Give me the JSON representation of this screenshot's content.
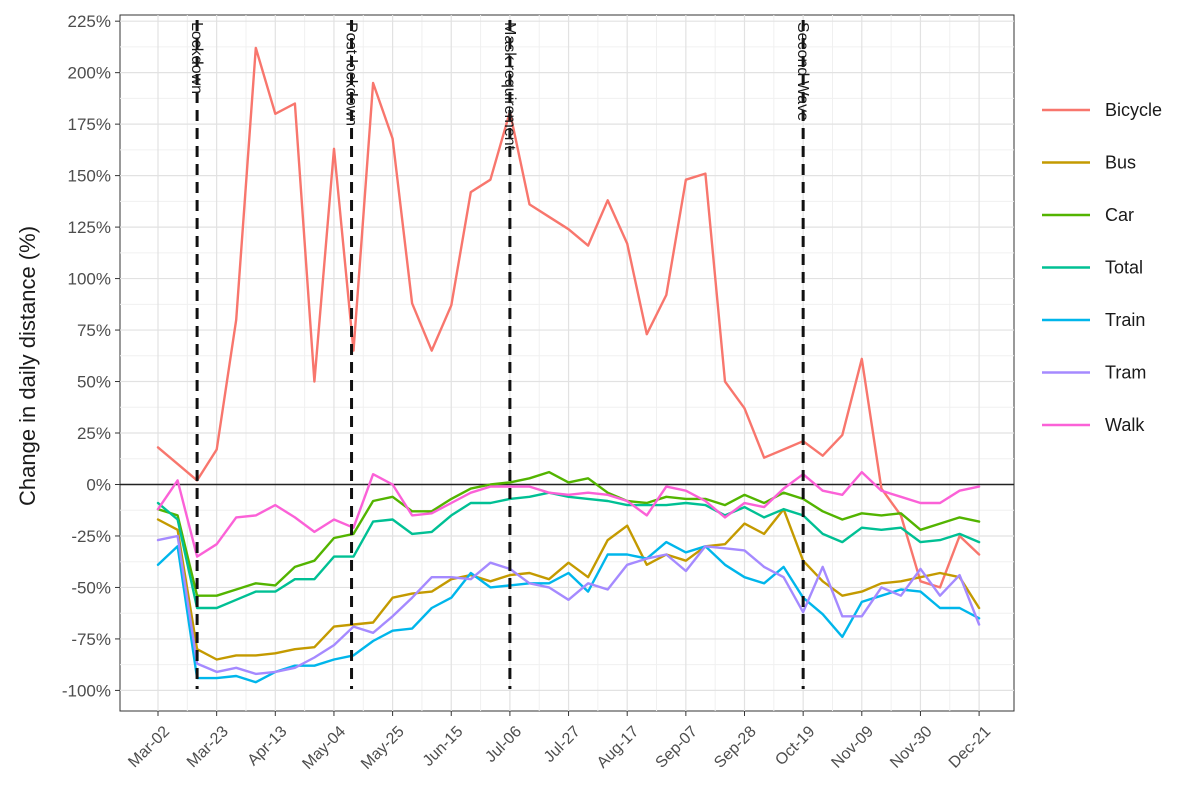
{
  "chart_data": {
    "type": "line",
    "title": "",
    "xlabel": "",
    "ylabel": "Change in daily distance (%)",
    "ylim": [
      -110,
      228
    ],
    "yticks": [
      -100,
      -75,
      -50,
      -25,
      0,
      25,
      50,
      75,
      100,
      125,
      150,
      175,
      200,
      225
    ],
    "ytick_labels": [
      "-100%",
      "-75%",
      "-50%",
      "-25%",
      "0%",
      "25%",
      "50%",
      "75%",
      "100%",
      "125%",
      "150%",
      "175%",
      "200%",
      "225%"
    ],
    "x": [
      "Mar-02",
      "Mar-09",
      "Mar-16",
      "Mar-23",
      "Mar-30",
      "Apr-06",
      "Apr-13",
      "Apr-20",
      "Apr-27",
      "May-04",
      "May-11",
      "May-18",
      "May-25",
      "Jun-01",
      "Jun-08",
      "Jun-15",
      "Jun-22",
      "Jun-29",
      "Jul-06",
      "Jul-13",
      "Jul-20",
      "Jul-27",
      "Aug-03",
      "Aug-10",
      "Aug-17",
      "Aug-24",
      "Aug-31",
      "Sep-07",
      "Sep-14",
      "Sep-21",
      "Sep-28",
      "Oct-05",
      "Oct-12",
      "Oct-19",
      "Oct-26",
      "Nov-02",
      "Nov-09",
      "Nov-16",
      "Nov-23",
      "Nov-30",
      "Dec-07",
      "Dec-14",
      "Dec-21"
    ],
    "xtick_labels": [
      "Mar-02",
      "Mar-23",
      "Apr-13",
      "May-04",
      "May-25",
      "Jun-15",
      "Jul-06",
      "Jul-27",
      "Aug-17",
      "Sep-07",
      "Sep-28",
      "Oct-19",
      "Nov-09",
      "Nov-30",
      "Dec-21"
    ],
    "grid": true,
    "legend_position": "right",
    "zero_line": true,
    "events": [
      {
        "x": 2.0,
        "label": "Lockdown"
      },
      {
        "x": 9.9,
        "label": "Post-lockdown"
      },
      {
        "x": 18.0,
        "label": "Mask requirement"
      },
      {
        "x": 33.0,
        "label": "Second Wave"
      }
    ],
    "series": [
      {
        "name": "Bicycle",
        "color": "#F8766D",
        "values": [
          18,
          10,
          2,
          17,
          80,
          212,
          180,
          185,
          50,
          163,
          65,
          195,
          168,
          88,
          65,
          87,
          142,
          148,
          181,
          136,
          130,
          124,
          116,
          138,
          117,
          73,
          92,
          148,
          151,
          50,
          37,
          13,
          17,
          21,
          14,
          24,
          61,
          -2,
          -15,
          -47,
          -50,
          -25,
          -34
        ]
      },
      {
        "name": "Bus",
        "color": "#C49A00",
        "values": [
          -17,
          -22,
          -80,
          -85,
          -83,
          -83,
          -82,
          -80,
          -79,
          -69,
          -68,
          -67,
          -55,
          -53,
          -52,
          -46,
          -44,
          -47,
          -44,
          -43,
          -46,
          -38,
          -45,
          -27,
          -20,
          -39,
          -34,
          -37,
          -30,
          -29,
          -19,
          -24,
          -12,
          -37,
          -47,
          -54,
          -52,
          -48,
          -47,
          -45,
          -43,
          -45,
          -60
        ]
      },
      {
        "name": "Car",
        "color": "#53B400",
        "values": [
          -12,
          -15,
          -54,
          -54,
          -51,
          -48,
          -49,
          -40,
          -37,
          -26,
          -24,
          -8,
          -6,
          -13,
          -13,
          -7,
          -2,
          0,
          1,
          3,
          6,
          1,
          3,
          -4,
          -8,
          -9,
          -6,
          -7,
          -7,
          -10,
          -5,
          -9,
          -4,
          -7,
          -13,
          -17,
          -14,
          -15,
          -14,
          -22,
          -19,
          -16,
          -18
        ]
      },
      {
        "name": "Total",
        "color": "#00C094",
        "values": [
          -9,
          -17,
          -60,
          -60,
          -56,
          -52,
          -52,
          -46,
          -46,
          -35,
          -35,
          -18,
          -17,
          -24,
          -23,
          -15,
          -9,
          -9,
          -7,
          -6,
          -4,
          -6,
          -7,
          -8,
          -10,
          -10,
          -10,
          -9,
          -10,
          -15,
          -11,
          -16,
          -12,
          -15,
          -24,
          -28,
          -21,
          -22,
          -21,
          -28,
          -27,
          -24,
          -28
        ]
      },
      {
        "name": "Train",
        "color": "#00B6EB",
        "values": [
          -39,
          -30,
          -94,
          -94,
          -93,
          -96,
          -91,
          -88,
          -88,
          -85,
          -83,
          -76,
          -71,
          -70,
          -60,
          -55,
          -43,
          -50,
          -49,
          -48,
          -48,
          -43,
          -52,
          -34,
          -34,
          -36,
          -28,
          -33,
          -30,
          -39,
          -45,
          -48,
          -40,
          -55,
          -63,
          -74,
          -57,
          -54,
          -51,
          -52,
          -60,
          -60,
          -65
        ]
      },
      {
        "name": "Tram",
        "color": "#A58AFF",
        "values": [
          -27,
          -25,
          -87,
          -91,
          -89,
          -92,
          -91,
          -89,
          -84,
          -78,
          -69,
          -72,
          -64,
          -55,
          -45,
          -45,
          -46,
          -38,
          -41,
          -48,
          -50,
          -56,
          -48,
          -51,
          -39,
          -36,
          -34,
          -42,
          -30,
          -31,
          -32,
          -40,
          -45,
          -62,
          -40,
          -64,
          -64,
          -50,
          -54,
          -41,
          -54,
          -44,
          -68
        ]
      },
      {
        "name": "Walk",
        "color": "#FB61D7",
        "values": [
          -12,
          2,
          -35,
          -29,
          -16,
          -15,
          -10,
          -16,
          -23,
          -17,
          -21,
          5,
          0,
          -15,
          -14,
          -9,
          -4,
          -1,
          -1,
          -1,
          -4,
          -5,
          -4,
          -5,
          -8,
          -15,
          -1,
          -3,
          -8,
          -16,
          -9,
          -11,
          -2,
          5,
          -3,
          -5,
          6,
          -3,
          -6,
          -9,
          -9,
          -3,
          -1
        ]
      }
    ]
  }
}
